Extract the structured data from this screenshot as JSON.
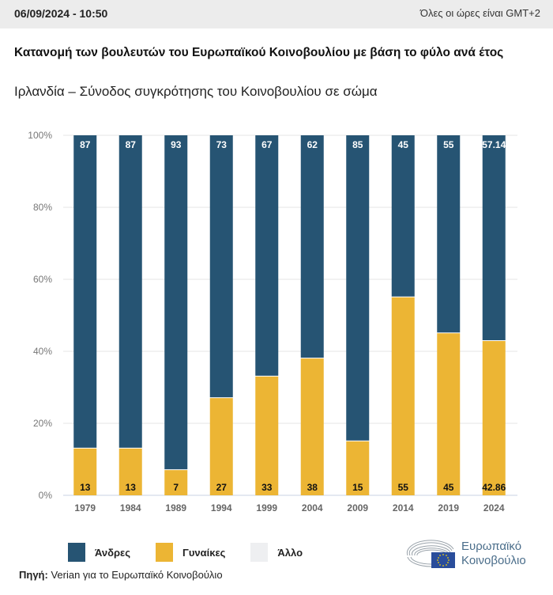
{
  "header": {
    "datetime": "06/09/2024 - 10:50",
    "timezone_note": "Όλες οι ώρες είναι GMT+2"
  },
  "title": "Κατανομή των βουλευτών του Ευρωπαϊκού Κοινοβουλίου με βάση το φύλο ανά έτος",
  "subtitle": "Ιρλανδία – Σύνοδος συγκρότησης του Κοινοβουλίου σε σώμα",
  "source": {
    "label": "Πηγή:",
    "text": " Verian για το Ευρωπαϊκό Κοινοβούλιο"
  },
  "logo": {
    "line1": "Ευρωπαϊκό",
    "line2": "Κοινοβούλιο"
  },
  "colors": {
    "men": "#265473",
    "women": "#ecb534",
    "other": "#eeeff1"
  },
  "chart_data": {
    "type": "bar",
    "stacked": true,
    "title": "Κατανομή των βουλευτών του Ευρωπαϊκού Κοινοβουλίου με βάση το φύλο ανά έτος",
    "subtitle": "Ιρλανδία – Σύνοδος συγκρότησης του Κοινοβουλίου σε σώμα",
    "xlabel": "",
    "ylabel": "",
    "ylim": [
      0,
      100
    ],
    "yticks": [
      "0%",
      "20%",
      "40%",
      "60%",
      "80%",
      "100%"
    ],
    "ytick_values": [
      0,
      20,
      40,
      60,
      80,
      100
    ],
    "categories": [
      "1979",
      "1984",
      "1989",
      "1994",
      "1999",
      "2004",
      "2009",
      "2014",
      "2019",
      "2024"
    ],
    "series": [
      {
        "name": "Γυναίκες",
        "color": "#ecb534",
        "values": [
          13,
          13,
          7,
          27,
          33,
          38,
          15,
          55,
          45,
          42.86
        ],
        "labels": [
          "13",
          "13",
          "7",
          "27",
          "33",
          "38",
          "15",
          "55",
          "45",
          "42.86"
        ]
      },
      {
        "name": "Άνδρες",
        "color": "#265473",
        "values": [
          87,
          87,
          93,
          73,
          67,
          62,
          85,
          45,
          55,
          57.14
        ],
        "labels": [
          "87",
          "87",
          "93",
          "73",
          "67",
          "62",
          "85",
          "45",
          "55",
          "57.14"
        ]
      },
      {
        "name": "Άλλο",
        "color": "#eeeff1",
        "values": [
          0,
          0,
          0,
          0,
          0,
          0,
          0,
          0,
          0,
          0
        ]
      }
    ],
    "legend": [
      "Άνδρες",
      "Γυναίκες",
      "Άλλο"
    ],
    "legend_position": "bottom-left",
    "grid": true
  }
}
